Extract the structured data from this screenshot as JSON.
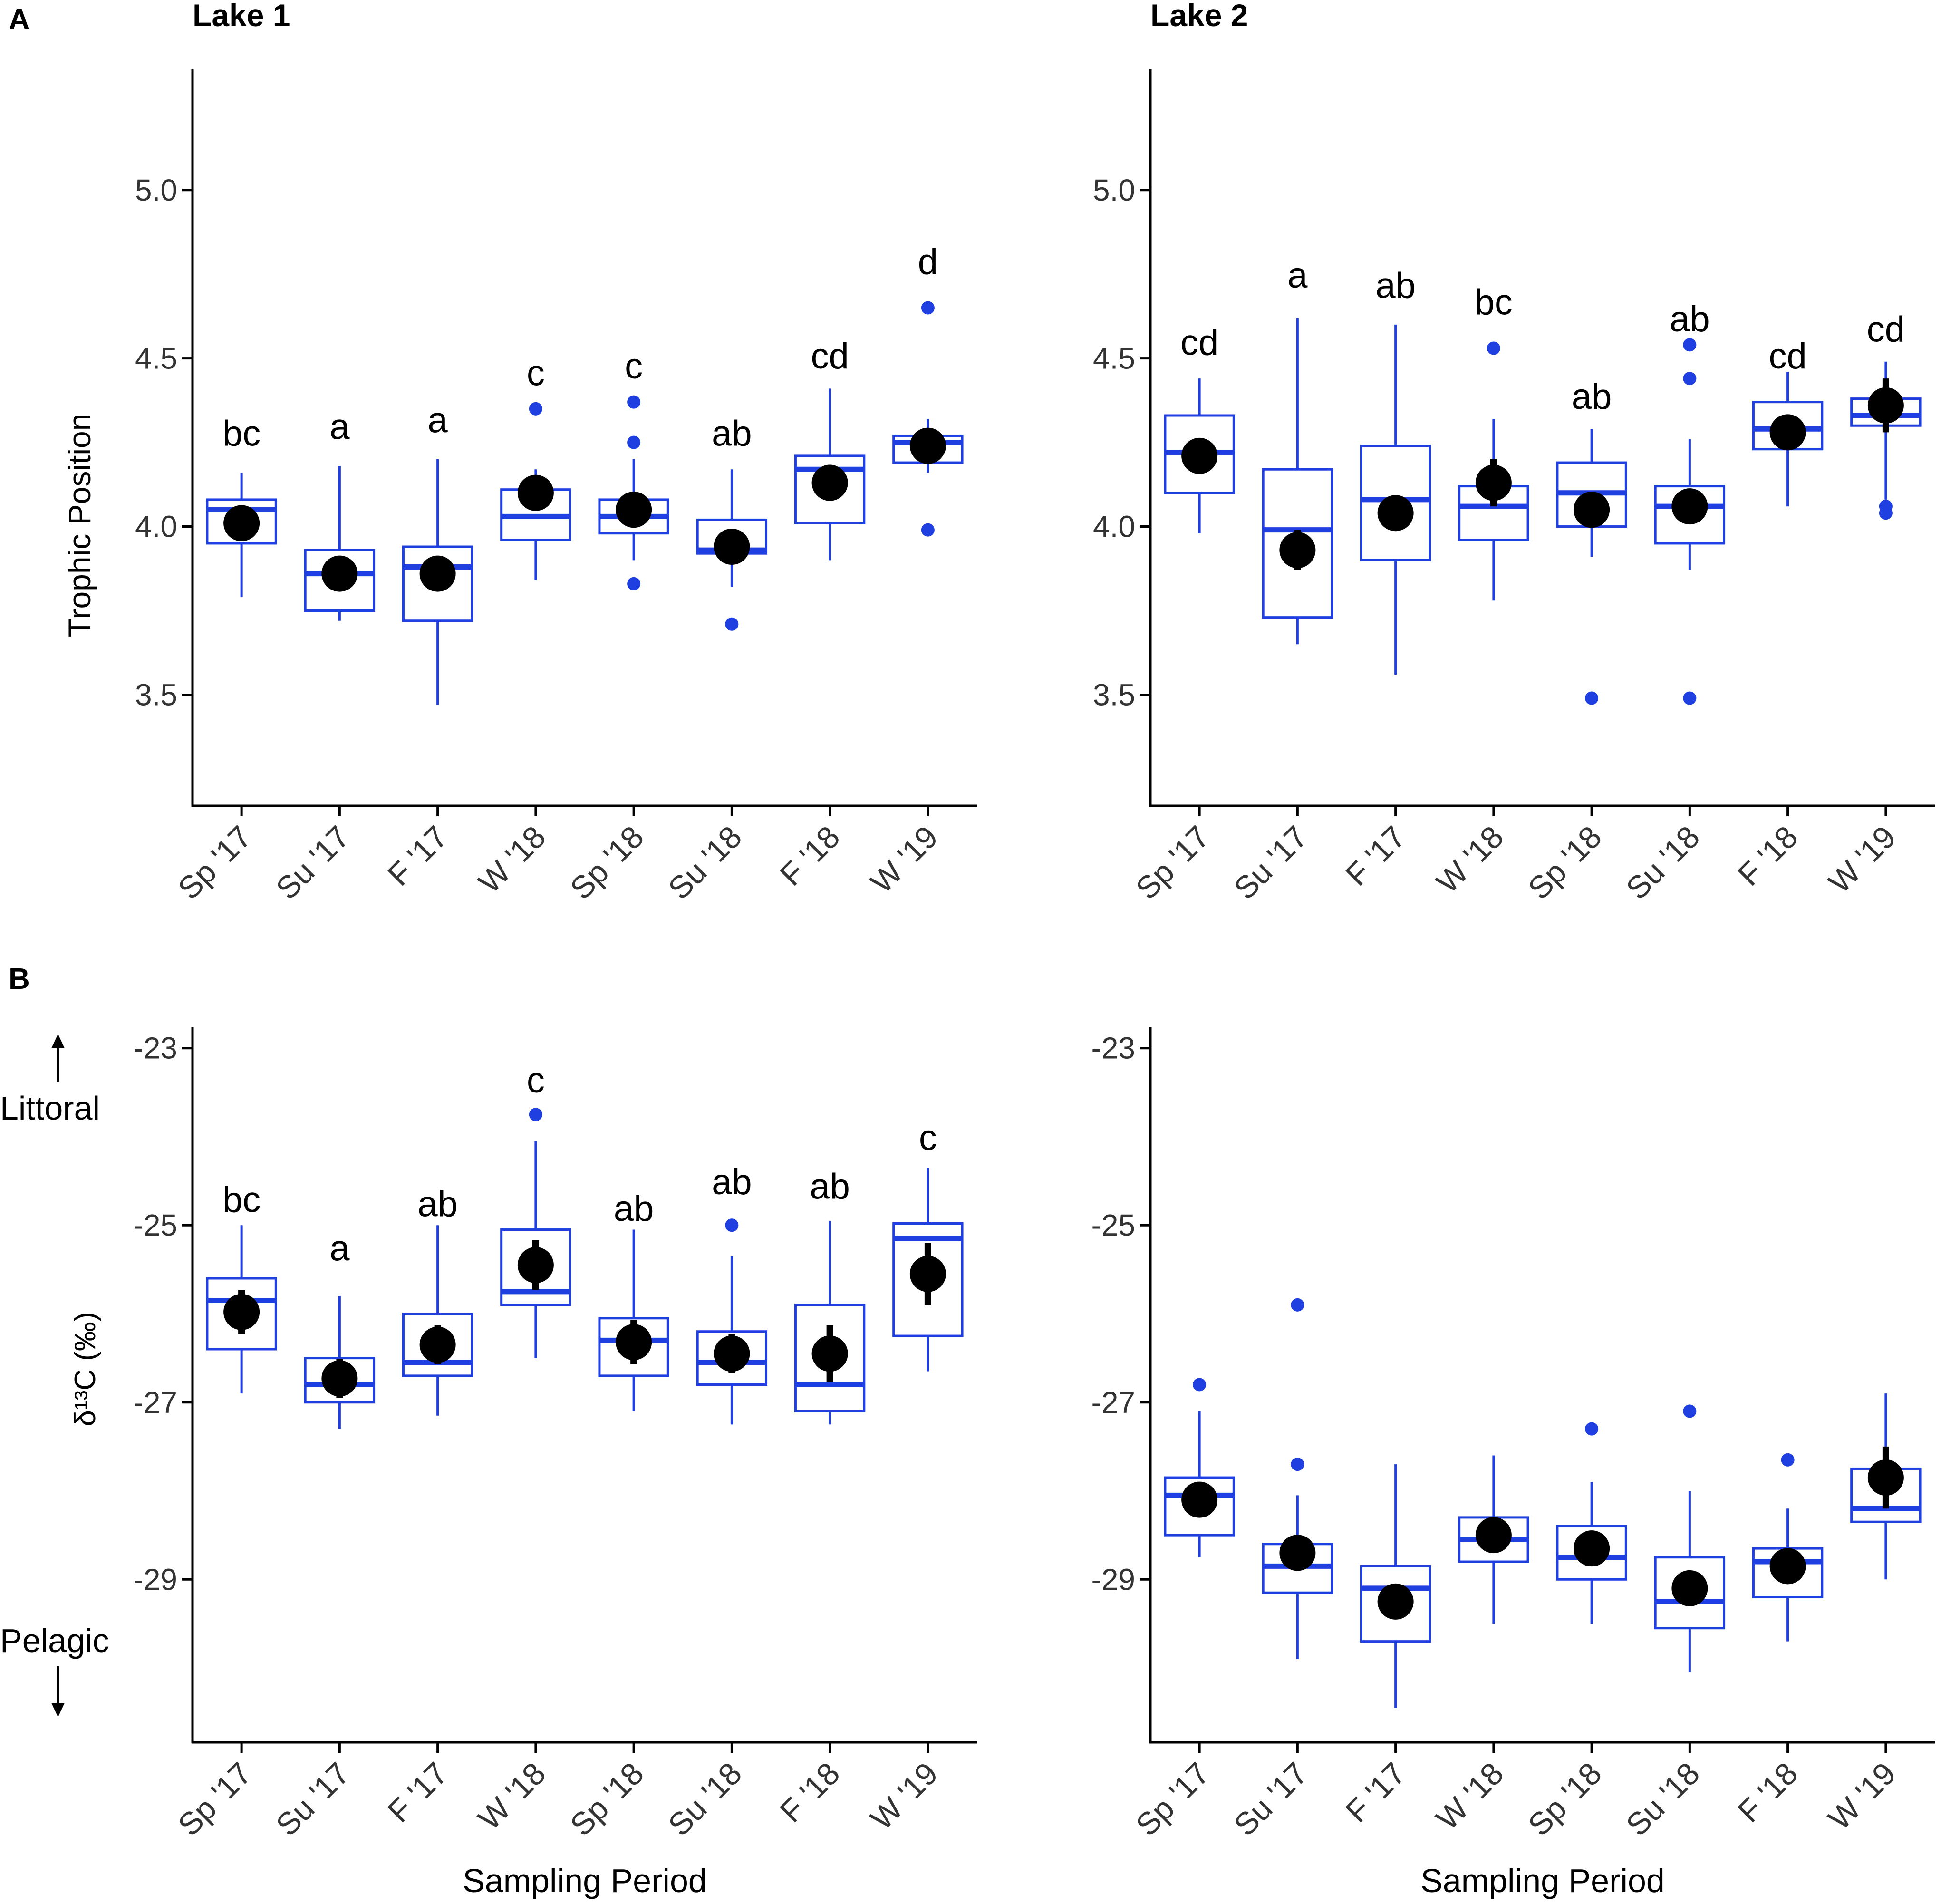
{
  "figure": {
    "panel_a_label": "A",
    "panel_b_label": "B",
    "lake1_title": "Lake 1",
    "lake2_title": "Lake 2",
    "xlabel": "Sampling Period",
    "littoral_label": "Littoral",
    "pelagic_label": "Pelagic",
    "box_color": "#1f3fe0",
    "mean_color": "#000000"
  },
  "chart_data": [
    {
      "id": "tp_lake1",
      "type": "box",
      "title": "Lake 1",
      "panel": "A",
      "ylabel": "Trophic Position",
      "ylim": [
        3.17,
        5.36
      ],
      "yticks": [
        3.5,
        4.0,
        4.5,
        5.0
      ],
      "ytick_labels": [
        "3.5",
        "4.0",
        "4.5",
        "5.0"
      ],
      "categories": [
        "Sp '17",
        "Su '17",
        "F '17",
        "W '18",
        "Sp '18",
        "Su '18",
        "F '18",
        "W '19"
      ],
      "q1": [
        3.95,
        3.75,
        3.72,
        3.96,
        3.98,
        3.92,
        4.01,
        4.19
      ],
      "median": [
        4.05,
        3.86,
        3.88,
        4.03,
        4.03,
        3.93,
        4.17,
        4.25
      ],
      "q3": [
        4.08,
        3.93,
        3.94,
        4.11,
        4.08,
        4.02,
        4.21,
        4.27
      ],
      "whisker_low": [
        3.79,
        3.72,
        3.47,
        3.84,
        3.9,
        3.82,
        3.9,
        4.16
      ],
      "whisker_high": [
        4.16,
        4.18,
        4.2,
        4.17,
        4.2,
        4.17,
        4.41,
        4.32
      ],
      "mean": [
        4.01,
        3.86,
        3.86,
        4.1,
        4.05,
        3.94,
        4.13,
        4.24
      ],
      "mean_err": [
        0.02,
        0.02,
        0.02,
        0.04,
        0.03,
        0.03,
        0.04,
        0.03
      ],
      "outliers": [
        [],
        [],
        [],
        [
          4.35
        ],
        [
          4.37,
          4.25,
          3.83
        ],
        [
          3.71
        ],
        [],
        [
          4.65,
          3.99
        ]
      ],
      "letters": [
        "bc",
        "a",
        "a",
        "c",
        "c",
        "ab",
        "cd",
        "d"
      ],
      "letter_y": [
        4.24,
        4.26,
        4.28,
        4.42,
        4.44,
        4.24,
        4.47,
        4.75
      ]
    },
    {
      "id": "tp_lake2",
      "type": "box",
      "title": "Lake 2",
      "panel": "A",
      "ylabel": "",
      "ylim": [
        3.17,
        5.36
      ],
      "yticks": [
        3.5,
        4.0,
        4.5,
        5.0
      ],
      "ytick_labels": [
        "3.5",
        "4.0",
        "4.5",
        "5.0"
      ],
      "categories": [
        "Sp '17",
        "Su '17",
        "F '17",
        "W '18",
        "Sp '18",
        "Su '18",
        "F '18",
        "W '19"
      ],
      "q1": [
        4.1,
        3.73,
        3.9,
        3.96,
        4.0,
        3.95,
        4.23,
        4.3
      ],
      "median": [
        4.22,
        3.99,
        4.08,
        4.06,
        4.1,
        4.06,
        4.29,
        4.33
      ],
      "q3": [
        4.33,
        4.17,
        4.24,
        4.12,
        4.19,
        4.12,
        4.37,
        4.38
      ],
      "whisker_low": [
        3.98,
        3.65,
        3.56,
        3.78,
        3.91,
        3.87,
        4.06,
        4.08
      ],
      "whisker_high": [
        4.44,
        4.62,
        4.6,
        4.32,
        4.29,
        4.26,
        4.46,
        4.49
      ],
      "mean": [
        4.21,
        3.93,
        4.04,
        4.13,
        4.05,
        4.06,
        4.28,
        4.36
      ],
      "mean_err": [
        0.05,
        0.06,
        0.05,
        0.07,
        0.05,
        0.05,
        0.05,
        0.08
      ],
      "outliers": [
        [],
        [],
        [],
        [
          4.53
        ],
        [
          3.49
        ],
        [
          4.54,
          4.44,
          3.49
        ],
        [],
        [
          4.06,
          4.04
        ]
      ],
      "letters": [
        "cd",
        "a",
        "ab",
        "bc",
        "ab",
        "ab",
        "cd",
        "cd"
      ],
      "letter_y": [
        4.51,
        4.71,
        4.68,
        4.63,
        4.35,
        4.58,
        4.47,
        4.55
      ]
    },
    {
      "id": "d13c_lake1",
      "type": "box",
      "title": "",
      "panel": "B",
      "ylabel": "δ¹³C (‰)",
      "ylim": [
        -30.84,
        -22.76
      ],
      "yticks": [
        -29,
        -27,
        -25,
        -23
      ],
      "ytick_labels": [
        "-29",
        "-27",
        "-25",
        "-23"
      ],
      "categories": [
        "Sp '17",
        "Su '17",
        "F '17",
        "W '18",
        "Sp '18",
        "Su '18",
        "F '18",
        "W '19"
      ],
      "q1": [
        -26.4,
        -27.0,
        -26.7,
        -25.9,
        -26.7,
        -26.8,
        -27.1,
        -26.25
      ],
      "median": [
        -25.85,
        -26.8,
        -26.55,
        -25.75,
        -26.3,
        -26.55,
        -26.8,
        -25.15
      ],
      "q3": [
        -25.6,
        -26.5,
        -26.0,
        -25.05,
        -26.05,
        -26.2,
        -25.9,
        -24.98
      ],
      "whisker_low": [
        -26.9,
        -27.3,
        -27.15,
        -26.5,
        -27.1,
        -27.25,
        -27.25,
        -26.65
      ],
      "whisker_high": [
        -25.0,
        -25.8,
        -25.0,
        -24.05,
        -25.05,
        -25.35,
        -24.95,
        -24.35
      ],
      "mean": [
        -25.98,
        -26.73,
        -26.35,
        -25.45,
        -26.32,
        -26.45,
        -26.45,
        -25.55
      ],
      "mean_err": [
        0.25,
        0.22,
        0.22,
        0.28,
        0.25,
        0.22,
        0.32,
        0.35
      ],
      "outliers": [
        [],
        [],
        [],
        [
          -23.75
        ],
        [],
        [
          -25.0
        ],
        [],
        []
      ],
      "letters": [
        "bc",
        "a",
        "ab",
        "c",
        "ab",
        "ab",
        "ab",
        "c"
      ],
      "letter_y": [
        -24.85,
        -25.4,
        -24.9,
        -23.5,
        -24.95,
        -24.65,
        -24.7,
        -24.15
      ]
    },
    {
      "id": "d13c_lake2",
      "type": "box",
      "title": "",
      "panel": "B",
      "ylabel": "",
      "ylim": [
        -30.84,
        -22.76
      ],
      "yticks": [
        -29,
        -27,
        -25,
        -23
      ],
      "ytick_labels": [
        "-29",
        "-27",
        "-25",
        "-23"
      ],
      "categories": [
        "Sp '17",
        "Su '17",
        "F '17",
        "W '18",
        "Sp '18",
        "Su '18",
        "F '18",
        "W '19"
      ],
      "q1": [
        -28.5,
        -29.15,
        -29.7,
        -28.8,
        -29.0,
        -29.55,
        -29.2,
        -28.35
      ],
      "median": [
        -28.05,
        -28.85,
        -29.1,
        -28.55,
        -28.75,
        -29.25,
        -28.8,
        -28.2
      ],
      "q3": [
        -27.85,
        -28.6,
        -28.85,
        -28.3,
        -28.4,
        -28.75,
        -28.65,
        -27.75
      ],
      "whisker_low": [
        -28.75,
        -29.9,
        -30.45,
        -29.5,
        -29.5,
        -30.05,
        -29.7,
        -29.0
      ],
      "whisker_high": [
        -27.1,
        -28.05,
        -27.7,
        -27.6,
        -27.9,
        -28.0,
        -28.2,
        -26.9
      ],
      "mean": [
        -28.1,
        -28.7,
        -29.25,
        -28.5,
        -28.65,
        -29.1,
        -28.85,
        -27.85
      ],
      "mean_err": [
        0.2,
        0.2,
        0.2,
        0.2,
        0.2,
        0.2,
        0.2,
        0.35
      ],
      "outliers": [
        [
          -26.8
        ],
        [
          -25.9,
          -27.7
        ],
        [],
        [],
        [
          -27.3
        ],
        [
          -27.1
        ],
        [
          -27.65
        ],
        []
      ],
      "letters": [],
      "letter_y": []
    }
  ]
}
